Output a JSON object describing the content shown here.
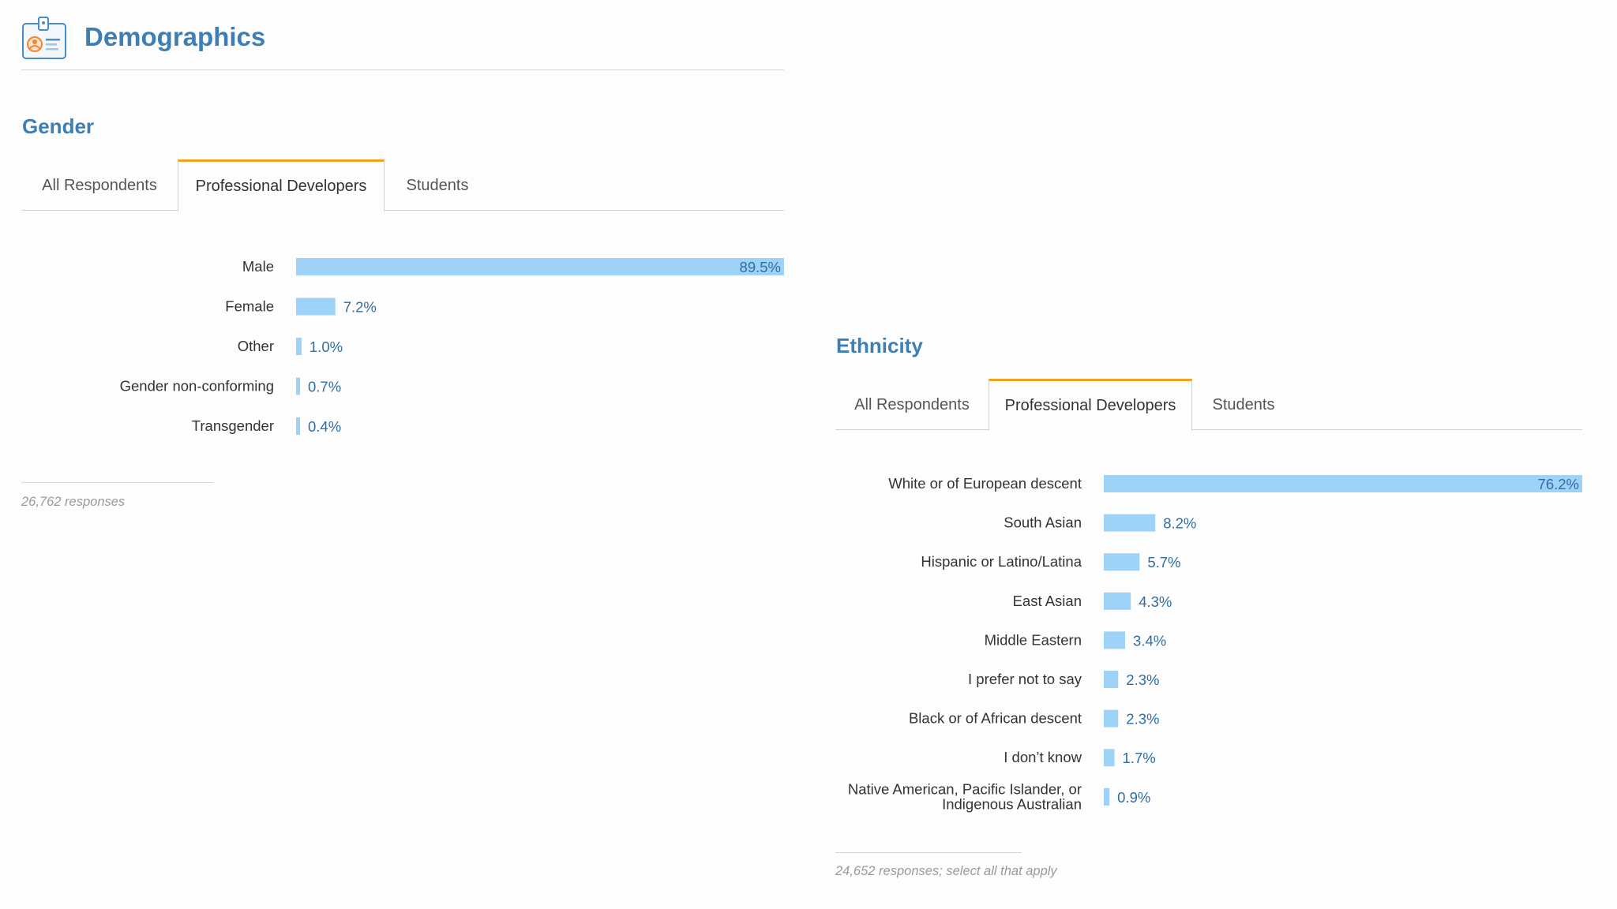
{
  "header": {
    "title": "Demographics",
    "icon": "id-badge-icon"
  },
  "gender": {
    "title": "Gender",
    "tabs": [
      "All Respondents",
      "Professional Developers",
      "Students"
    ],
    "active_tab": 1,
    "footnote": "26,762 responses"
  },
  "ethnicity": {
    "title": "Ethnicity",
    "tabs": [
      "All Respondents",
      "Professional Developers",
      "Students"
    ],
    "active_tab": 1,
    "footnote": "24,652 responses; select all that apply"
  },
  "chart_data": [
    {
      "type": "bar",
      "orientation": "horizontal",
      "title": "Gender",
      "categories": [
        "Male",
        "Female",
        "Other",
        "Gender non-conforming",
        "Transgender"
      ],
      "values": [
        89.5,
        7.2,
        1.0,
        0.7,
        0.4
      ],
      "value_labels": [
        "89.5%",
        "7.2%",
        "1.0%",
        "0.7%",
        "0.4%"
      ],
      "xlim": [
        0,
        89.5
      ],
      "color": "#9fd2f7"
    },
    {
      "type": "bar",
      "orientation": "horizontal",
      "title": "Ethnicity",
      "categories": [
        "White or of European descent",
        "South Asian",
        "Hispanic or Latino/Latina",
        "East Asian",
        "Middle Eastern",
        "I prefer not to say",
        "Black or of African descent",
        "I don’t know",
        "Native American, Pacific Islander, or Indigenous Australian"
      ],
      "values": [
        76.2,
        8.2,
        5.7,
        4.3,
        3.4,
        2.3,
        2.3,
        1.7,
        0.9
      ],
      "value_labels": [
        "76.2%",
        "8.2%",
        "5.7%",
        "4.3%",
        "3.4%",
        "2.3%",
        "2.3%",
        "1.7%",
        "0.9%"
      ],
      "xlim": [
        0,
        76.2
      ],
      "color": "#9fd2f7"
    }
  ]
}
